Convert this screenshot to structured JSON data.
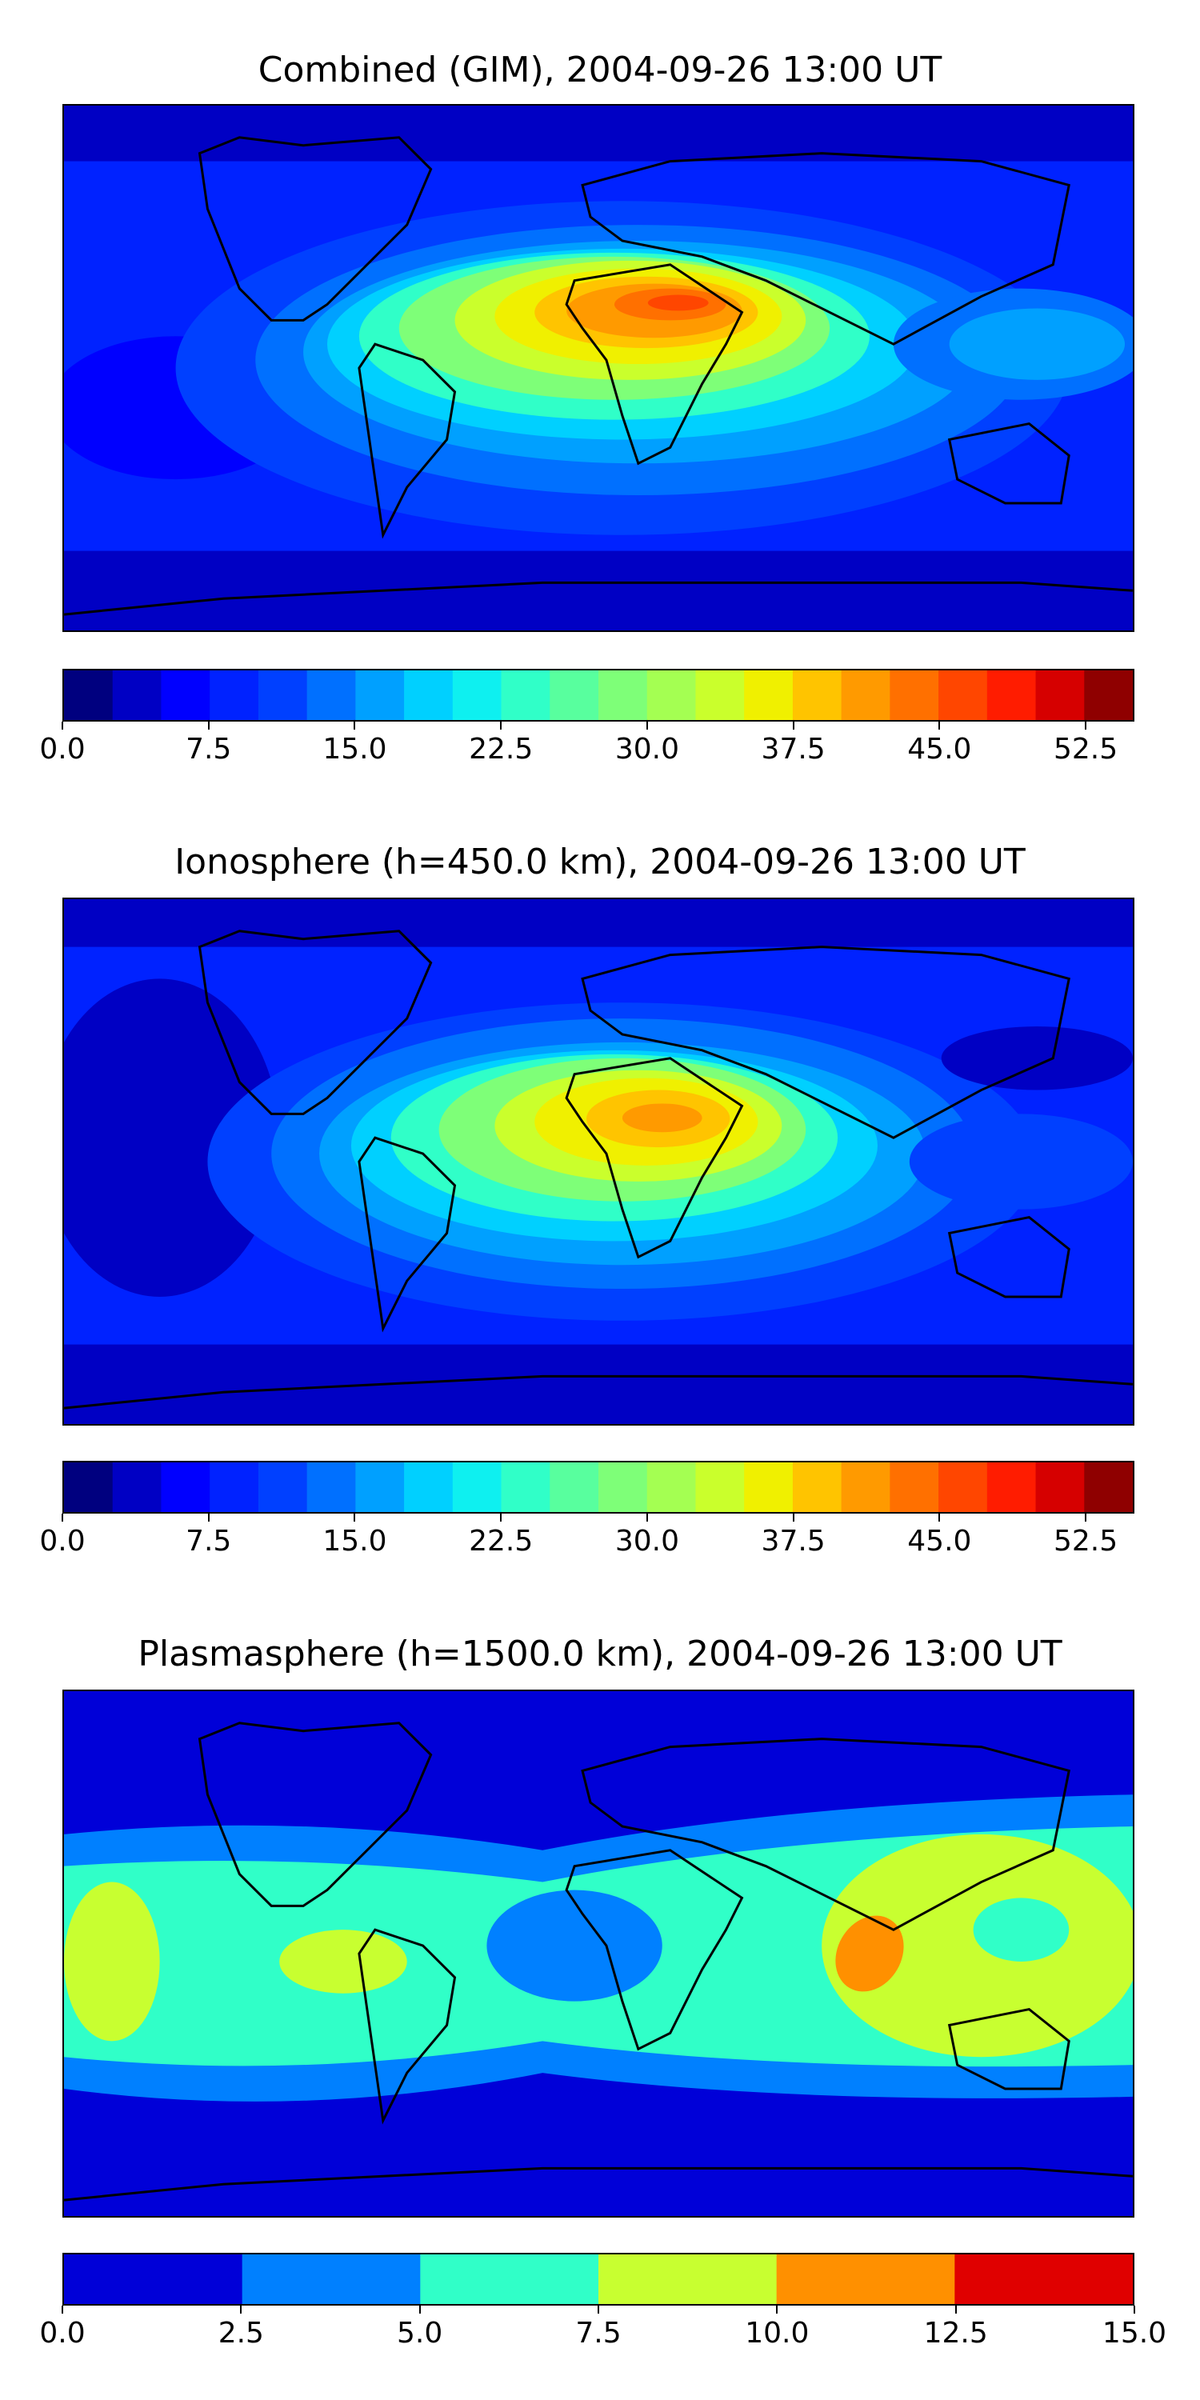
{
  "panels": [
    {
      "title": "Combined (GIM), 2004-09-26 13:00 UT",
      "colorbar": {
        "min": 0.0,
        "max": 55.0,
        "step": 2.5,
        "ticks": [
          "0.0",
          "7.5",
          "15.0",
          "22.5",
          "30.0",
          "37.5",
          "45.0",
          "52.5"
        ],
        "tick_values": [
          0,
          7.5,
          15,
          22.5,
          30,
          37.5,
          45,
          52.5
        ],
        "colors": [
          "#00007f",
          "#0000c4",
          "#0000ff",
          "#0022ff",
          "#0040ff",
          "#0070ff",
          "#00a0ff",
          "#00d0ff",
          "#0ef0f0",
          "#30ffc8",
          "#58ff9e",
          "#7eff78",
          "#a4ff52",
          "#caff2c",
          "#f0f000",
          "#ffc400",
          "#ff9a00",
          "#ff7000",
          "#ff4600",
          "#ff1c00",
          "#d60000",
          "#8f0000"
        ]
      },
      "peak": "approx. 45–47.5 over North Africa / Red Sea"
    },
    {
      "title": "Ionosphere  (h=450.0 km), 2004-09-26 13:00 UT",
      "colorbar": {
        "min": 0.0,
        "max": 55.0,
        "step": 2.5,
        "ticks": [
          "0.0",
          "7.5",
          "15.0",
          "22.5",
          "30.0",
          "37.5",
          "45.0",
          "52.5"
        ],
        "tick_values": [
          0,
          7.5,
          15,
          22.5,
          30,
          37.5,
          45,
          52.5
        ],
        "colors": [
          "#00007f",
          "#0000c4",
          "#0000ff",
          "#0022ff",
          "#0040ff",
          "#0070ff",
          "#00a0ff",
          "#00d0ff",
          "#0ef0f0",
          "#30ffc8",
          "#58ff9e",
          "#7eff78",
          "#a4ff52",
          "#caff2c",
          "#f0f000",
          "#ffc400",
          "#ff9a00",
          "#ff7000",
          "#ff4600",
          "#ff1c00",
          "#d60000",
          "#8f0000"
        ]
      },
      "peak": "approx. 37.5–40 over North Africa"
    },
    {
      "title": "Plasmasphere (h=1500.0 km), 2004-09-26 13:00 UT",
      "colorbar": {
        "min": 0.0,
        "max": 15.0,
        "step": 2.5,
        "ticks": [
          "0.0",
          "2.5",
          "5.0",
          "7.5",
          "10.0",
          "12.5",
          "15.0"
        ],
        "tick_values": [
          0,
          2.5,
          5,
          7.5,
          10,
          12.5,
          15
        ],
        "colors": [
          "#0000d8",
          "#0080ff",
          "#30ffc8",
          "#c8ff30",
          "#ff9000",
          "#e00000"
        ]
      },
      "peak": "approx. 10–12.5 over Bay of Bengal / SE Asia"
    }
  ]
}
